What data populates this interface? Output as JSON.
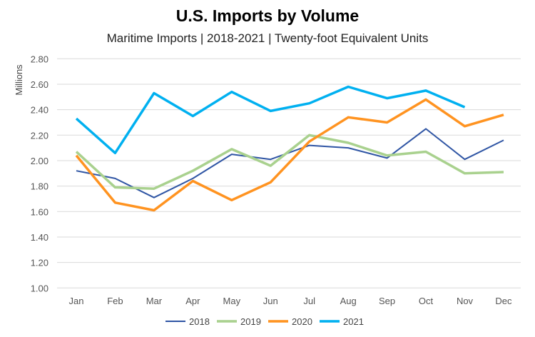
{
  "chart_data": {
    "type": "line",
    "title": "U.S. Imports by Volume",
    "subtitle": "Maritime Imports | 2018-2021 | Twenty-foot Equivalent Units",
    "xlabel": "",
    "ylabel": "Millions",
    "ylim": [
      1.0,
      2.8
    ],
    "yticks": [
      "1.00",
      "1.20",
      "1.40",
      "1.60",
      "1.80",
      "2.00",
      "2.20",
      "2.40",
      "2.60",
      "2.80"
    ],
    "grid": "horizontal",
    "legend_placement": "bottom",
    "categories": [
      "Jan",
      "Feb",
      "Mar",
      "Apr",
      "May",
      "Jun",
      "Jul",
      "Aug",
      "Sep",
      "Oct",
      "Nov",
      "Dec"
    ],
    "series": [
      {
        "name": "2018",
        "color": "#2F55A4",
        "values": [
          1.92,
          1.86,
          1.71,
          1.86,
          2.05,
          2.01,
          2.12,
          2.1,
          2.02,
          2.25,
          2.01,
          2.16
        ]
      },
      {
        "name": "2019",
        "color": "#A9D18E",
        "values": [
          2.07,
          1.79,
          1.78,
          1.92,
          2.09,
          1.96,
          2.2,
          2.14,
          2.04,
          2.07,
          1.9,
          1.91
        ]
      },
      {
        "name": "2020",
        "color": "#FF9320",
        "values": [
          2.04,
          1.67,
          1.61,
          1.84,
          1.69,
          1.83,
          2.15,
          2.34,
          2.3,
          2.48,
          2.27,
          2.36
        ]
      },
      {
        "name": "2021",
        "color": "#00B0F0",
        "values": [
          2.33,
          2.06,
          2.53,
          2.35,
          2.54,
          2.39,
          2.45,
          2.58,
          2.49,
          2.55,
          2.42,
          null
        ]
      }
    ]
  }
}
